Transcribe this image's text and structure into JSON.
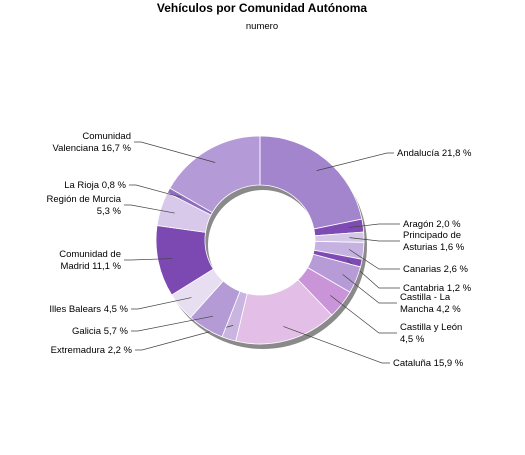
{
  "chart_data": {
    "type": "pie",
    "style": "donut",
    "title": "Vehículos por Comunidad Autónoma",
    "subtitle": "numero",
    "unit": "%",
    "slices": [
      {
        "label": "Andalucía",
        "value": 21.8,
        "color": "#A285CC",
        "text_lines": [
          "Andalucía 21,8 %"
        ]
      },
      {
        "label": "Aragón",
        "value": 2.0,
        "color": "#7E4BB4",
        "text_lines": [
          "Aragón 2,0 %"
        ]
      },
      {
        "label": "Principado de Asturias",
        "value": 1.6,
        "color": "#D5C8E6",
        "text_lines": [
          "Principado de",
          "Asturias 1,6 %"
        ]
      },
      {
        "label": "Canarias",
        "value": 2.6,
        "color": "#C6B2E0",
        "text_lines": [
          "Canarias 2,6 %"
        ]
      },
      {
        "label": "Cantabria",
        "value": 1.2,
        "color": "#7E4BB4",
        "text_lines": [
          "Cantabria 1,2 %"
        ]
      },
      {
        "label": "Castilla - La Mancha",
        "value": 4.2,
        "color": "#B79BD6",
        "text_lines": [
          "Castilla - La",
          "Mancha 4,2 %"
        ]
      },
      {
        "label": "Castilla y León",
        "value": 4.5,
        "color": "#C994D8",
        "text_lines": [
          "Castilla y León",
          "4,5 %"
        ]
      },
      {
        "label": "Cataluña",
        "value": 15.9,
        "color": "#E3BEE6",
        "text_lines": [
          "Cataluña 15,9 %"
        ]
      },
      {
        "label": "Extremadura",
        "value": 2.2,
        "color": "#C9B5E0",
        "text_lines": [
          "Extremadura 2,2 %"
        ]
      },
      {
        "label": "Galicia",
        "value": 5.7,
        "color": "#B49BD5",
        "text_lines": [
          "Galicia 5,7 %"
        ]
      },
      {
        "label": "Illes Balears",
        "value": 4.5,
        "color": "#E8DEF1",
        "text_lines": [
          "Illes Balears 4,5 %"
        ]
      },
      {
        "label": "Comunidad de Madrid",
        "value": 11.1,
        "color": "#7C48B2",
        "text_lines": [
          "Comunidad de",
          "Madrid 11,1 %"
        ]
      },
      {
        "label": "Región de Murcia",
        "value": 5.3,
        "color": "#D8C8E9",
        "text_lines": [
          "Región de Murcia",
          "5,3 %"
        ]
      },
      {
        "label": "La Rioja",
        "value": 0.8,
        "color": "#8E6CC0",
        "text_lines": [
          "La Rioja 0,8 %"
        ]
      },
      {
        "label": "Comunidad Valenciana",
        "value": 16.7,
        "color": "#B49AD6",
        "text_lines": [
          "Comunidad",
          "Valenciana 16,7 %"
        ]
      }
    ]
  }
}
